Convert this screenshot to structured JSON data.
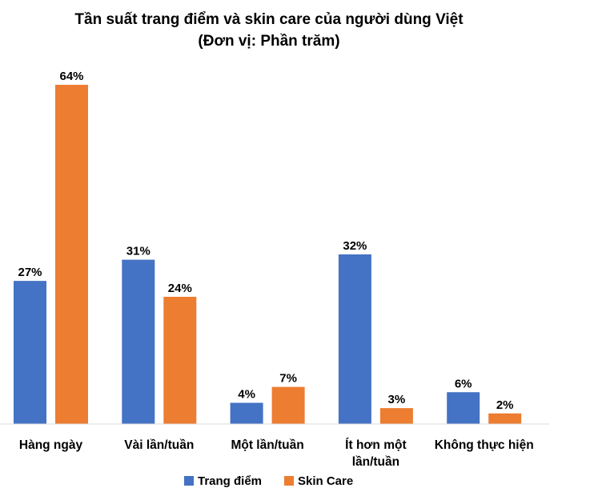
{
  "chart_data": {
    "type": "bar",
    "title": "Tần suất trang điểm và skin care của người dùng Việt",
    "subtitle": "(Đơn vị: Phần trăm)",
    "categories": [
      [
        "Hàng ngày"
      ],
      [
        "Vài lần/tuần"
      ],
      [
        "Một lần/tuần"
      ],
      [
        "Ít hơn một",
        "lần/tuần"
      ],
      [
        "Không thực hiện"
      ]
    ],
    "series": [
      {
        "name": "Trang điểm",
        "color": "#4472c4",
        "values": [
          27,
          31,
          4,
          32,
          6
        ]
      },
      {
        "name": "Skin Care",
        "color": "#ed7d31",
        "values": [
          64,
          24,
          7,
          3,
          2
        ]
      }
    ],
    "value_suffix": "%",
    "ylim": [
      0,
      64
    ],
    "grid": false,
    "legend": "bottom"
  }
}
